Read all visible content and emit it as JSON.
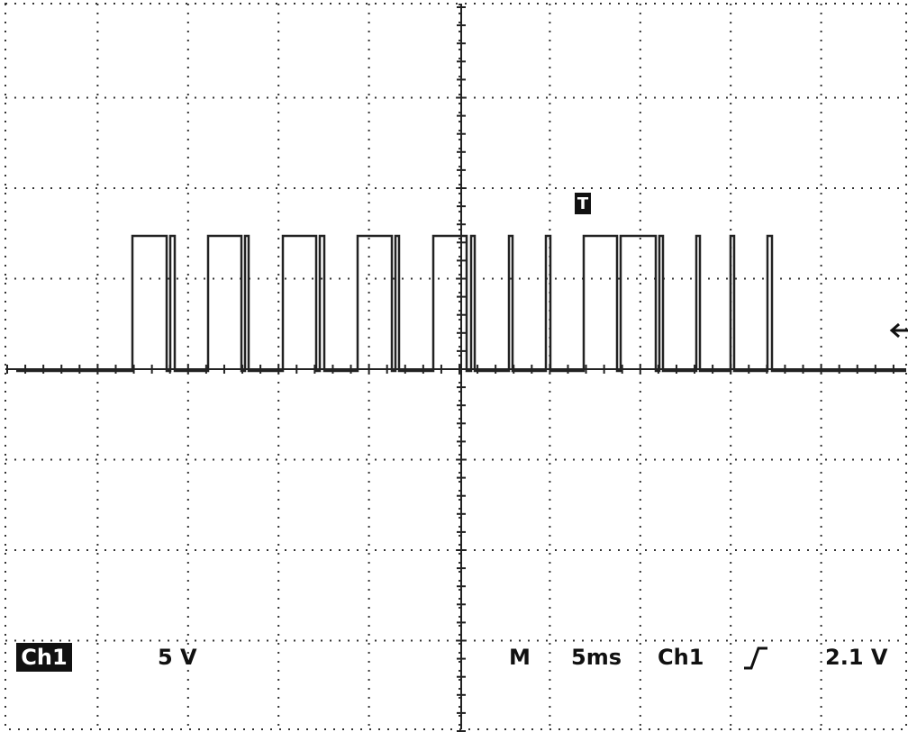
{
  "status_bar": {
    "channel": "Ch1",
    "volts_per_div": "5 V",
    "timebase_label": "M",
    "timebase": "5ms",
    "trigger_source": "Ch1",
    "trigger_level": "2.1 V"
  },
  "trigger_marker": "T"
}
